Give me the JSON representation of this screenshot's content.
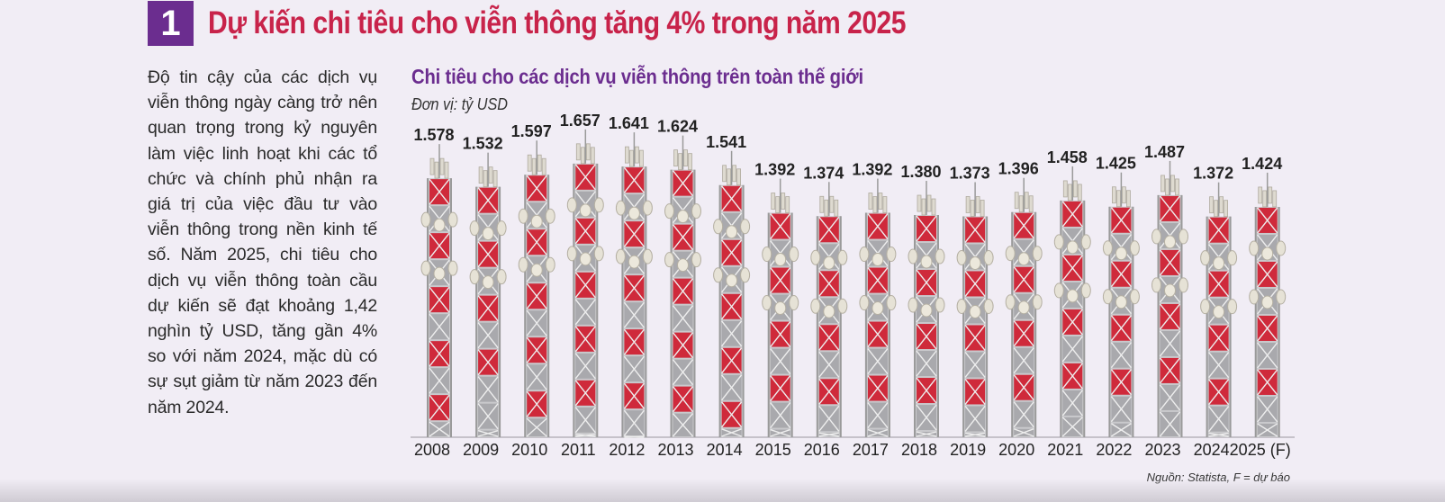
{
  "header": {
    "number": "1",
    "title": "Dự kiến chi tiêu cho viễn thông tăng 4% trong năm 2025"
  },
  "body_text": "Độ tin cậy của các dịch vụ viễn thông ngày càng trở nên quan trọng trong kỷ nguyên làm việc linh hoạt khi các tổ chức và chính phủ nhận ra giá trị của việc đầu tư vào viễn thông trong nền kinh tế số. Năm 2025, chi tiêu cho dịch vụ viễn thông toàn cầu dự kiến sẽ đạt khoảng 1,42 nghìn tỷ USD, tăng gần 4% so với năm 2024, mặc dù có sự sụt giảm từ năm 2023 đến năm 2024.",
  "colors": {
    "accent_red": "#c8234a",
    "accent_purple": "#6b2d8f",
    "tower_red": "#cf2a3b",
    "tower_gray": "#9a9a9a"
  },
  "chart_data": {
    "type": "bar",
    "title": "Chi tiêu cho các dịch vụ viễn thông trên toàn thế giới",
    "unit": "Đơn vị: tỷ USD",
    "source": "Nguồn: Statista, F = dự báo",
    "xlabel": "",
    "ylabel": "tỷ USD",
    "ylim": [
      0,
      1700
    ],
    "categories": [
      "2008",
      "2009",
      "2010",
      "2011",
      "2012",
      "2013",
      "2014",
      "2015",
      "2016",
      "2017",
      "2018",
      "2019",
      "2020",
      "2021",
      "2022",
      "2023",
      "2024",
      "2025 (F)"
    ],
    "values": [
      1578,
      1532,
      1597,
      1657,
      1641,
      1624,
      1541,
      1392,
      1374,
      1392,
      1380,
      1373,
      1396,
      1458,
      1425,
      1487,
      1372,
      1424
    ],
    "value_labels": [
      "1.578",
      "1.532",
      "1.597",
      "1.657",
      "1.641",
      "1.624",
      "1.541",
      "1.392",
      "1.374",
      "1.392",
      "1.380",
      "1.373",
      "1.396",
      "1.458",
      "1.425",
      "1.487",
      "1.372",
      "1.424"
    ]
  }
}
